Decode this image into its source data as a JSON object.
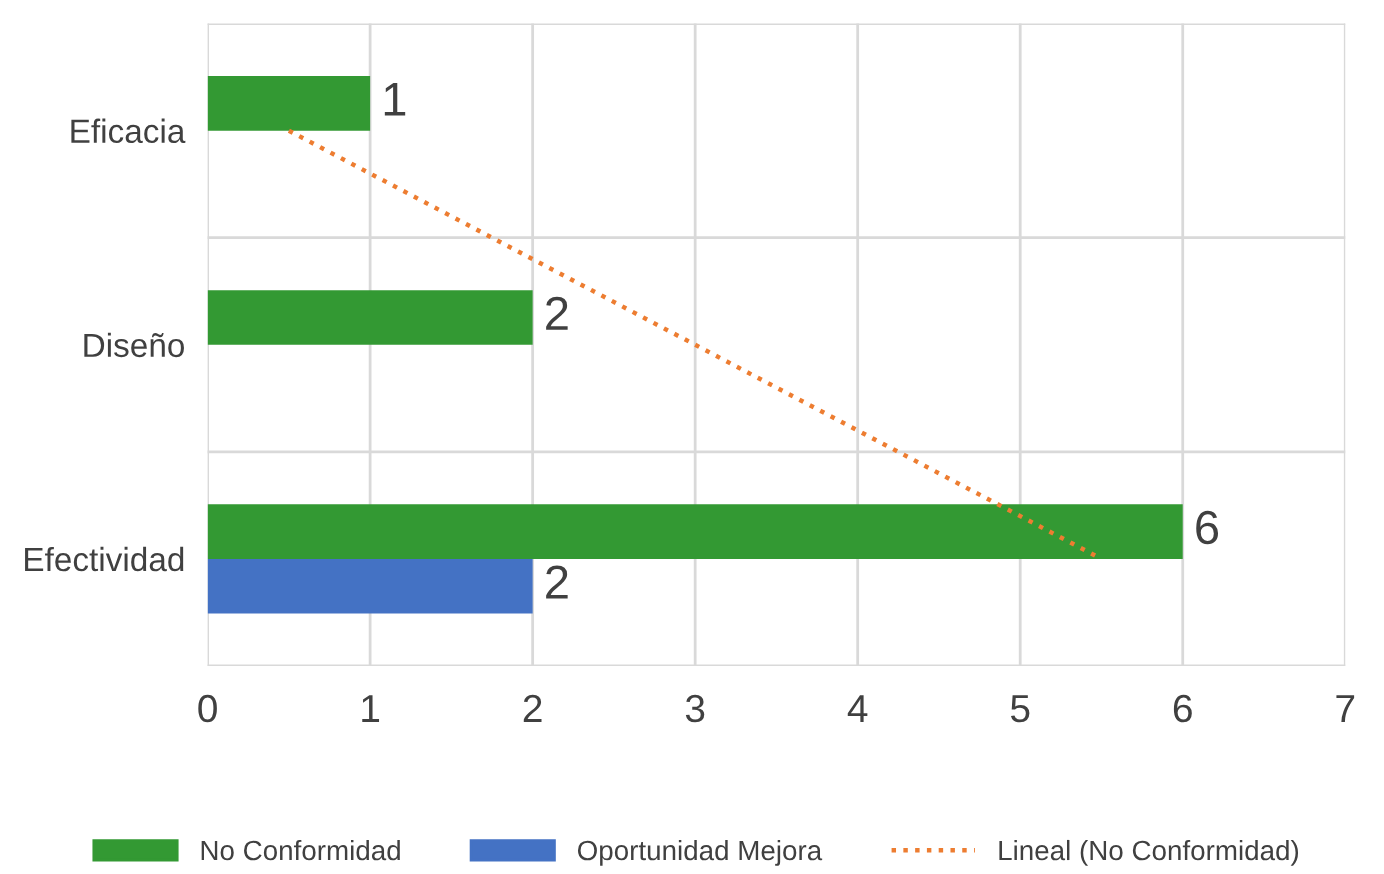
{
  "chart_data": {
    "type": "bar",
    "orientation": "horizontal",
    "categories": [
      "Eficacia",
      "Diseño",
      "Efectividad"
    ],
    "series": [
      {
        "name": "No Conformidad",
        "color": "#339933",
        "values": [
          1,
          2,
          6
        ],
        "value_labels": [
          "1",
          "2",
          "6"
        ]
      },
      {
        "name": "Oportunidad Mejora",
        "color": "#4472c4",
        "values": [
          null,
          null,
          2
        ],
        "value_labels": [
          null,
          null,
          "2"
        ]
      },
      {
        "name": "Lineal (No Conformidad)",
        "type": "line",
        "color": "#ed7d31",
        "line_style": "dotted",
        "values": [
          0.5,
          3,
          5.5
        ]
      }
    ],
    "xlim": [
      0,
      7
    ],
    "xticks": [
      0,
      1,
      2,
      3,
      4,
      5,
      6,
      7
    ],
    "grid": "x",
    "legend": "bottom"
  }
}
